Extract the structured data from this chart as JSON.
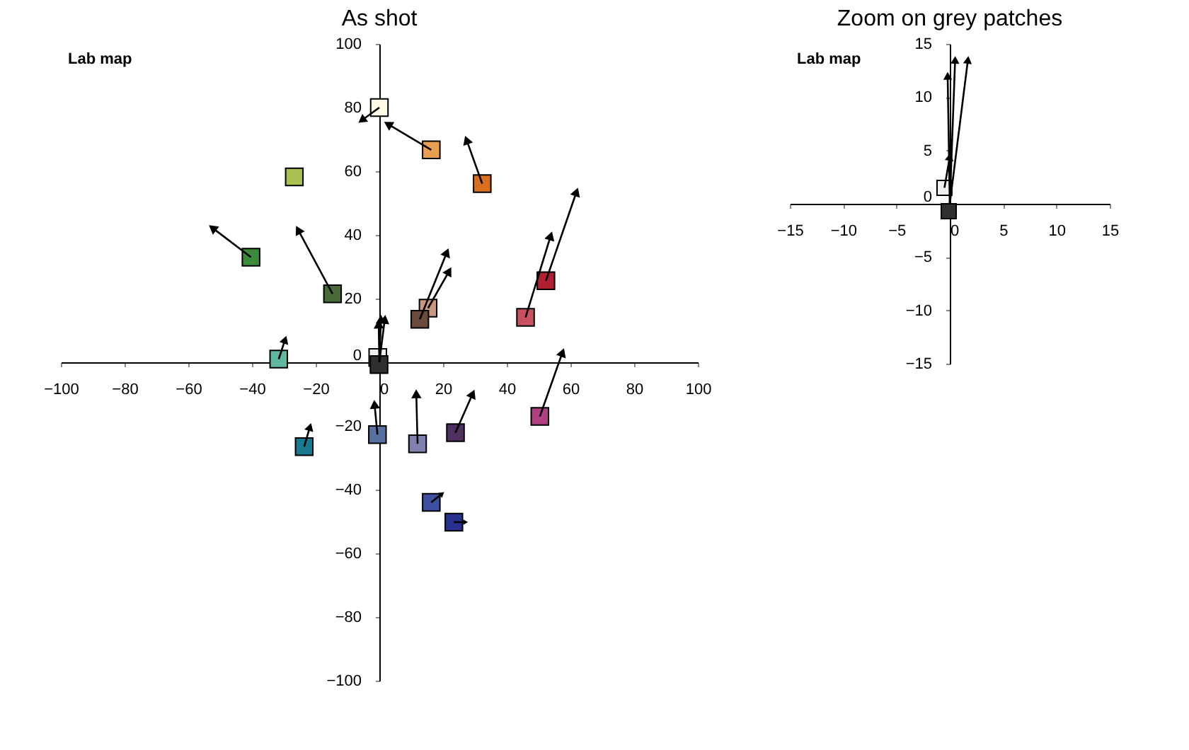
{
  "chart_data": [
    {
      "type": "scatter",
      "title": "As shot",
      "annotations": [
        "Lab map"
      ],
      "xlim": [
        -100,
        100
      ],
      "ylim": [
        -100,
        100
      ],
      "xticks": [
        -100,
        -80,
        -60,
        -40,
        -20,
        0,
        20,
        40,
        60,
        80,
        100
      ],
      "yticks": [
        -100,
        -80,
        -60,
        -40,
        -20,
        0,
        20,
        40,
        60,
        80,
        100
      ],
      "grid": false,
      "legend": false,
      "series": [
        {
          "type": "line",
          "color": "#000000",
          "x": [
            0,
            -5.5
          ],
          "values": [
            80,
            76
          ]
        },
        {
          "type": "line",
          "color": "#000000",
          "x": [
            16.3,
            2.7
          ],
          "values": [
            66.7,
            74.8
          ]
        },
        {
          "type": "line",
          "color": "#000000",
          "x": [
            32.3,
            27.4
          ],
          "values": [
            56.1,
            69.8
          ]
        },
        {
          "type": "line",
          "color": "#000000",
          "x": [
            -40.3,
            -52.4
          ],
          "values": [
            33,
            42.2
          ]
        },
        {
          "type": "line",
          "color": "#000000",
          "x": [
            -14.7,
            -25.5
          ],
          "values": [
            21.5,
            41.6
          ]
        },
        {
          "type": "line",
          "color": "#000000",
          "x": [
            52.3,
            61.9
          ],
          "values": [
            25.6,
            53.5
          ]
        },
        {
          "type": "line",
          "color": "#000000",
          "x": [
            45.9,
            53.8
          ],
          "values": [
            14.1,
            39.7
          ]
        },
        {
          "type": "line",
          "color": "#000000",
          "x": [
            15.3,
            21.9
          ],
          "values": [
            17,
            28.6
          ]
        },
        {
          "type": "line",
          "color": "#000000",
          "x": [
            12.7,
            21.2
          ],
          "values": [
            13.5,
            34.5
          ]
        },
        {
          "type": "line",
          "color": "#000000",
          "x": [
            -31.6,
            -29.6
          ],
          "values": [
            1,
            7.1
          ]
        },
        {
          "type": "line",
          "color": "#000000",
          "x": [
            -23.6,
            -21.8
          ],
          "values": [
            -26.5,
            -20.3
          ]
        },
        {
          "type": "line",
          "color": "#000000",
          "x": [
            -0.6,
            -1.5
          ],
          "values": [
            -22.7,
            -13.2
          ]
        },
        {
          "type": "line",
          "color": "#000000",
          "x": [
            12,
            11.6
          ],
          "values": [
            -25.6,
            -9.9
          ]
        },
        {
          "type": "line",
          "color": "#000000",
          "x": [
            23.9,
            29.3
          ],
          "values": [
            -22.1,
            -9.9
          ]
        },
        {
          "type": "line",
          "color": "#000000",
          "x": [
            50.4,
            57.5
          ],
          "values": [
            -17,
            3.1
          ]
        },
        {
          "type": "line",
          "color": "#000000",
          "x": [
            16.3,
            19.7
          ],
          "values": [
            -44,
            -41.3
          ]
        },
        {
          "type": "line",
          "color": "#000000",
          "x": [
            23.4,
            27.1
          ],
          "values": [
            -50.2,
            -50.2
          ]
        },
        {
          "type": "line",
          "color": "#000000",
          "x": [
            0,
            -0.2
          ],
          "values": [
            0,
            12
          ]
        },
        {
          "type": "line",
          "color": "#000000",
          "x": [
            0,
            0.5
          ],
          "values": [
            0,
            13.5
          ]
        },
        {
          "type": "line",
          "color": "#000000",
          "x": [
            0,
            1.7
          ],
          "values": [
            0,
            13.5
          ]
        },
        {
          "type": "scatter",
          "marker": "square",
          "x": [
            0,
            16.3,
            32.3,
            -26.7,
            -40.3,
            -14.7,
            52.3,
            45.9,
            15.3,
            12.7,
            -31.6,
            -23.6,
            -0.6,
            12,
            23.9,
            50.4,
            16.3,
            23.4,
            -0.5,
            -0.1
          ],
          "values": [
            80,
            66.7,
            56.1,
            58.2,
            33,
            21.5,
            25.6,
            14.1,
            17,
            13.5,
            1,
            -26.5,
            -22.7,
            -25.6,
            -22.1,
            -17,
            -44,
            -50.2,
            1.5,
            -0.7
          ],
          "colors": [
            "#fffbe6",
            "#e8a050",
            "#d87020",
            "#a8c050",
            "#3c8a3c",
            "#4a6a3a",
            "#b02030",
            "#c85060",
            "#c89880",
            "#6a4a3a",
            "#60b8a0",
            "#1a7890",
            "#5870a0",
            "#8080b0",
            "#503060",
            "#b04080",
            "#4050a0",
            "#283090",
            "#f0f0f0",
            "#303030"
          ]
        }
      ]
    },
    {
      "type": "scatter",
      "title": "Zoom on grey patches",
      "annotations": [
        "Lab map"
      ],
      "xlim": [
        -15,
        15
      ],
      "ylim": [
        -15,
        15
      ],
      "xticks": [
        -15,
        -10,
        -5,
        0,
        5,
        10,
        15
      ],
      "yticks": [
        -15,
        -10,
        -5,
        0,
        5,
        10,
        15
      ],
      "grid": false,
      "legend": false,
      "series": [
        {
          "type": "line",
          "color": "#000000",
          "x": [
            0,
            -0.2
          ],
          "values": [
            0,
            12
          ]
        },
        {
          "type": "line",
          "color": "#000000",
          "x": [
            0,
            0.5
          ],
          "values": [
            0,
            13.5
          ]
        },
        {
          "type": "line",
          "color": "#000000",
          "x": [
            0,
            1.7
          ],
          "values": [
            0,
            13.5
          ]
        },
        {
          "type": "line",
          "color": "#000000",
          "x": [
            -0.5,
            0
          ],
          "values": [
            1.5,
            4.4
          ]
        },
        {
          "type": "scatter",
          "marker": "square",
          "x": [
            -0.5,
            -0.1
          ],
          "values": [
            1.5,
            -0.7
          ],
          "colors": [
            "#f0f0f0",
            "#303030"
          ]
        }
      ]
    }
  ]
}
